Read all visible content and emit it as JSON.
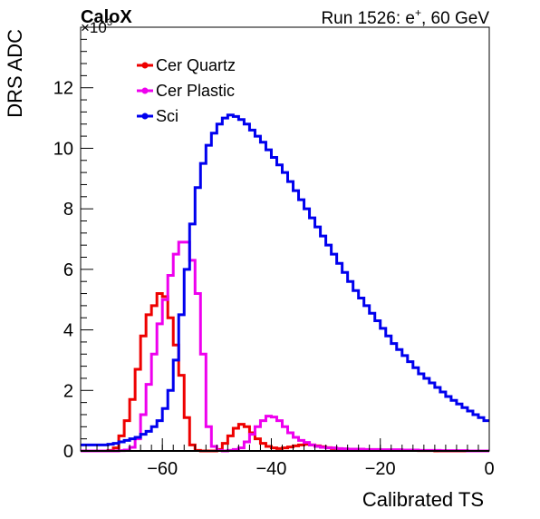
{
  "page": {
    "label_left": "CaloX",
    "run_label": "Run 1526: e",
    "run_sup": "+",
    "run_tail": ", 60 GeV",
    "exponent_label": "×10",
    "exponent_sup": "3"
  },
  "chart_data": {
    "type": "line",
    "style": "step",
    "xlabel": "Calibrated TS",
    "ylabel": "DRS ADC",
    "xlim": [
      -75,
      0
    ],
    "ylim": [
      0,
      14
    ],
    "y_scale_factor": "10^3",
    "x_ticks": [
      -60,
      -40,
      -20,
      0
    ],
    "x_tick_labels": [
      "−60",
      "−40",
      "−20",
      "0"
    ],
    "y_ticks": [
      0,
      2,
      4,
      6,
      8,
      10,
      12
    ],
    "y_tick_labels": [
      "0",
      "2",
      "4",
      "6",
      "8",
      "10",
      "12"
    ],
    "grid": false,
    "legend_position": "top-left",
    "bin_width": 1,
    "x_start": -75,
    "series": [
      {
        "name": "Cer Quartz",
        "color": "#ee0000",
        "values": [
          0,
          0,
          0,
          0,
          0,
          0.02,
          0.1,
          0.5,
          1.0,
          1.7,
          2.7,
          3.8,
          4.5,
          4.8,
          5.2,
          5.1,
          4.4,
          3.5,
          2.5,
          1.1,
          0.2,
          0.02,
          0,
          0,
          0,
          0.05,
          0.25,
          0.5,
          0.75,
          0.88,
          0.8,
          0.6,
          0.4,
          0.25,
          0.15,
          0.1,
          0.08,
          0.1,
          0.13,
          0.17,
          0.2,
          0.22,
          0.2,
          0.17,
          0.14,
          0.11,
          0.08,
          0.06,
          0.05,
          0.04,
          0.03,
          0.02,
          0.02,
          0.02,
          0.02,
          0.02,
          0.02,
          0.03,
          0.03,
          0.03,
          0.02,
          0.02,
          0.01,
          0.01,
          0.01,
          0,
          0,
          0,
          0,
          0,
          0,
          0,
          0,
          0,
          0
        ]
      },
      {
        "name": "Cer Plastic",
        "color": "#ee00ee",
        "values": [
          0,
          0,
          0,
          0,
          0,
          0,
          0,
          0.01,
          0.03,
          0.12,
          0.4,
          1.2,
          2.2,
          3.2,
          4.2,
          5.0,
          5.8,
          6.5,
          6.9,
          6.9,
          6.3,
          5.2,
          3.2,
          0.8,
          0.15,
          0.02,
          0,
          0.02,
          0.05,
          0.1,
          0.3,
          0.55,
          0.8,
          1.0,
          1.15,
          1.12,
          1.0,
          0.8,
          0.6,
          0.45,
          0.35,
          0.28,
          0.2,
          0.15,
          0.12,
          0.1,
          0.1,
          0.08,
          0.07,
          0.06,
          0.06,
          0.06,
          0.05,
          0.05,
          0.05,
          0.04,
          0.04,
          0.04,
          0.04,
          0.03,
          0.03,
          0.03,
          0.02,
          0.02,
          0.02,
          0.02,
          0.01,
          0.01,
          0.01,
          0.01,
          0.01,
          0,
          0,
          0,
          0
        ]
      },
      {
        "name": "Sci",
        "color": "#0000ee",
        "values": [
          0.2,
          0.2,
          0.2,
          0.2,
          0.2,
          0.22,
          0.25,
          0.3,
          0.35,
          0.4,
          0.45,
          0.55,
          0.65,
          0.8,
          1.0,
          1.4,
          2.0,
          3.0,
          4.5,
          6.0,
          7.5,
          8.7,
          9.5,
          10.1,
          10.5,
          10.8,
          11.0,
          11.1,
          11.05,
          10.95,
          10.8,
          10.6,
          10.4,
          10.2,
          9.95,
          9.7,
          9.45,
          9.2,
          8.9,
          8.6,
          8.3,
          8.0,
          7.7,
          7.4,
          7.1,
          6.8,
          6.5,
          6.2,
          5.9,
          5.6,
          5.3,
          5.05,
          4.8,
          4.55,
          4.3,
          4.05,
          3.8,
          3.55,
          3.35,
          3.15,
          2.95,
          2.75,
          2.55,
          2.4,
          2.25,
          2.1,
          1.95,
          1.8,
          1.67,
          1.55,
          1.43,
          1.32,
          1.2,
          1.1,
          1.0
        ]
      }
    ]
  }
}
